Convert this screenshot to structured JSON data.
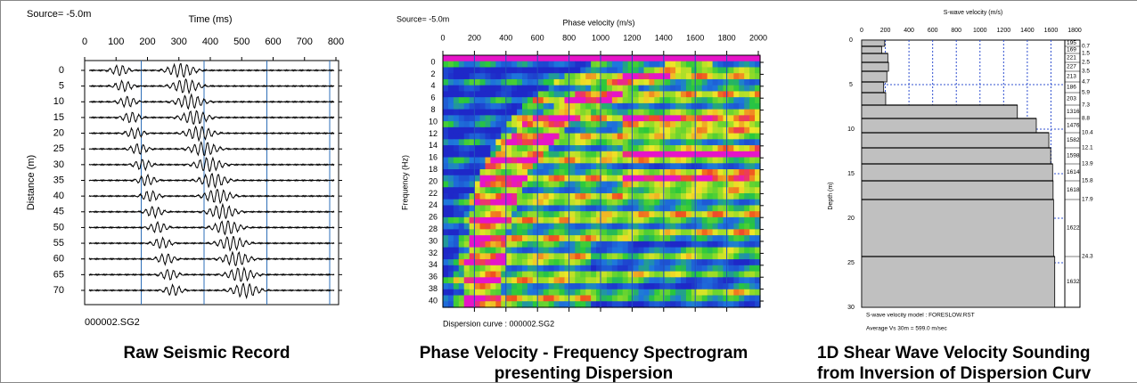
{
  "panels": [
    {
      "source": "Source= -5.0m",
      "x_axis_label": "Time (ms)",
      "x_ticks": [
        0,
        100,
        200,
        300,
        400,
        500,
        600,
        700,
        800
      ],
      "y_axis_label": "Distance (m)",
      "y_ticks": [
        0,
        5,
        10,
        15,
        20,
        25,
        30,
        35,
        40,
        45,
        50,
        55,
        60,
        65,
        70
      ],
      "file": "000002.SG2",
      "caption": [
        "Raw Seismic Record"
      ]
    },
    {
      "source": "Source= -5.0m",
      "x_axis_label": "Phase velocity (m/s)",
      "x_ticks": [
        0,
        200,
        400,
        600,
        800,
        1000,
        1200,
        1400,
        1600,
        1800,
        2000
      ],
      "y_axis_label": "Frequency (Hz)",
      "y_ticks": [
        0,
        2,
        4,
        6,
        8,
        10,
        12,
        14,
        16,
        18,
        20,
        22,
        24,
        26,
        28,
        30,
        32,
        34,
        36,
        38,
        40
      ],
      "file": "Dispersion curve : 000002.SG2",
      "caption": [
        "Phase Velocity - Frequency Spectrogram",
        "presenting Dispersion"
      ]
    },
    {
      "x_axis_label": "S-wave velocity (m/s)",
      "x_ticks": [
        0,
        200,
        400,
        600,
        800,
        1000,
        1200,
        1400,
        1600,
        1800
      ],
      "y_axis_label": "Depth (m)",
      "y_ticks": [
        0,
        5,
        10,
        15,
        20,
        25,
        30
      ],
      "velocities": [
        195,
        169,
        221,
        227,
        213,
        186,
        203,
        1316,
        1476,
        1582,
        1598,
        1614,
        1618,
        1622,
        1632
      ],
      "depths": [
        0.7,
        1.5,
        2.5,
        3.5,
        4.7,
        5.9,
        7.3,
        8.8,
        10.4,
        12.1,
        13.9,
        15.8,
        17.9,
        24.3
      ],
      "model": "S-wave velocity model : FORESLOW.RST",
      "average": "Average Vs 30m = 599.0 m/sec",
      "caption": [
        "1D Shear Wave Velocity Sounding",
        "from Inversion of Dispersion Curv"
      ]
    }
  ]
}
